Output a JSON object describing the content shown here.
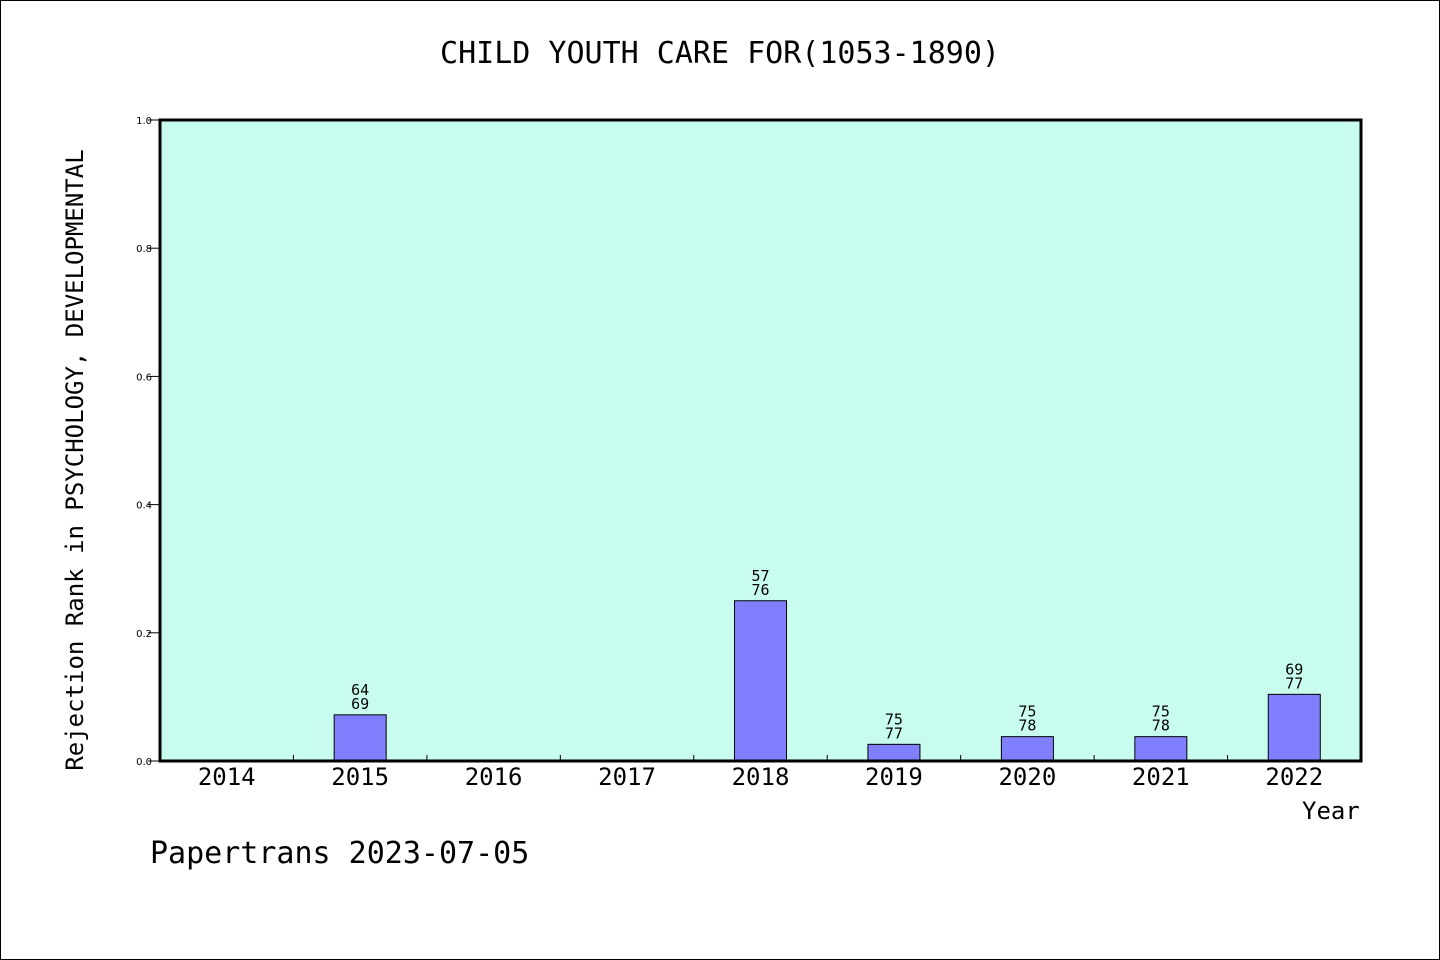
{
  "chart_data": {
    "type": "bar",
    "title": "CHILD YOUTH CARE FOR(1053-1890)",
    "xlabel": "Year",
    "ylabel": "Rejection Rank in PSYCHOLOGY, DEVELOPMENTAL",
    "categories": [
      "2014",
      "2015",
      "2016",
      "2017",
      "2018",
      "2019",
      "2020",
      "2021",
      "2022"
    ],
    "values": [
      null,
      0.072,
      null,
      null,
      0.25,
      0.026,
      0.038,
      0.038,
      0.104
    ],
    "bar_labels": [
      null,
      [
        "64",
        "69"
      ],
      null,
      null,
      [
        "57",
        "76"
      ],
      [
        "75",
        "77"
      ],
      [
        "75",
        "78"
      ],
      [
        "75",
        "78"
      ],
      [
        "69",
        "77"
      ]
    ],
    "ylim": [
      0,
      1.0
    ],
    "yticks": [
      "0.0",
      "0.2",
      "0.4",
      "0.6",
      "0.8",
      "1.0"
    ],
    "grid": false,
    "colors": {
      "plot_background": "#c8fcee",
      "bar_fill": "#8080ff",
      "bar_stroke": "#000000"
    }
  },
  "footer": "Papertrans 2023-07-05"
}
